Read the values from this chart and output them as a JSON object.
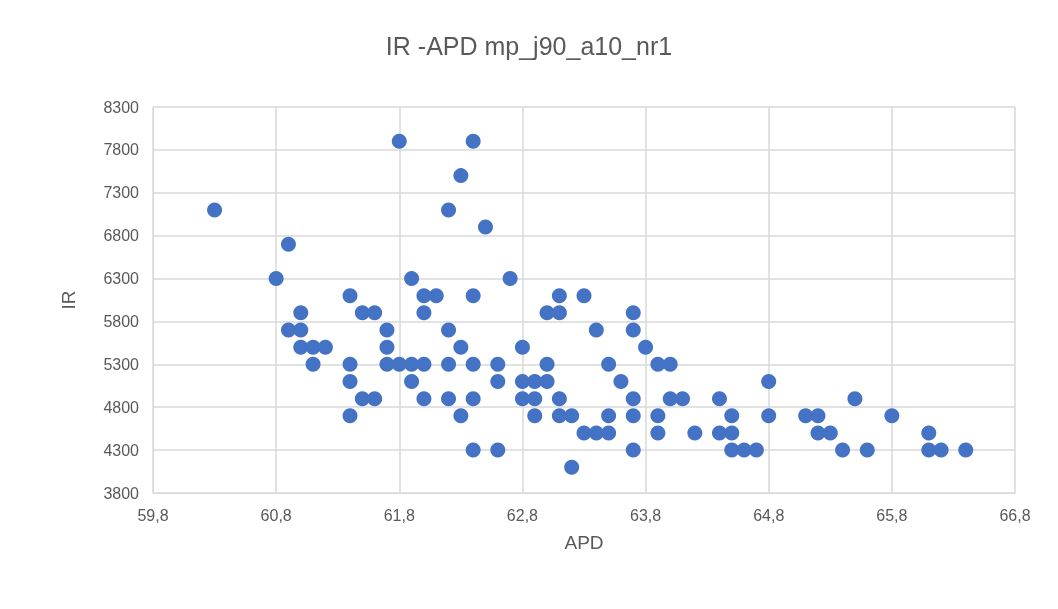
{
  "chart_data": {
    "type": "scatter",
    "title": "IR -APD mp_j90_a10_nr1",
    "xlabel": "APD",
    "ylabel": "IR",
    "xlim": [
      59.8,
      66.8
    ],
    "xticks": [
      {
        "value": 59.8,
        "label": "59,8"
      },
      {
        "value": 60.8,
        "label": "60,8"
      },
      {
        "value": 61.8,
        "label": "61,8"
      },
      {
        "value": 62.8,
        "label": "62,8"
      },
      {
        "value": 63.8,
        "label": "63,8"
      },
      {
        "value": 64.8,
        "label": "64,8"
      },
      {
        "value": 65.8,
        "label": "65,8"
      },
      {
        "value": 66.8,
        "label": "66,8"
      }
    ],
    "ylim": [
      3800,
      8300
    ],
    "yticks": [
      3800,
      4300,
      4800,
      5300,
      5800,
      6300,
      6800,
      7300,
      7800,
      8300
    ],
    "grid": true,
    "marker": "circle",
    "series": [
      {
        "color": "#4472c4",
        "x": [
          60.3,
          61.8,
          60.9,
          60.8,
          61.9,
          61.4,
          62.0,
          62.1,
          61.0,
          61.5,
          61.6,
          62.0,
          60.9,
          61.0,
          61.7,
          61.0,
          61.1,
          61.2,
          61.7,
          61.1,
          61.4,
          61.7,
          61.8,
          61.9,
          62.0,
          61.4,
          61.9,
          61.5,
          61.6,
          62.0,
          61.4,
          62.4,
          62.3,
          62.2,
          62.5,
          62.7,
          62.4,
          63.0,
          63.1,
          63.1,
          63.3,
          63.7,
          62.2,
          63.4,
          63.7,
          62.3,
          62.8,
          63.8,
          62.2,
          62.4,
          62.6,
          63.0,
          63.5,
          63.9,
          64.0,
          62.6,
          62.8,
          62.9,
          63.0,
          63.6,
          62.2,
          62.4,
          62.8,
          62.9,
          63.1,
          63.7,
          64.0,
          64.1,
          64.4,
          62.3,
          62.9,
          63.1,
          63.2,
          63.5,
          63.7,
          63.9,
          63.3,
          63.4,
          63.5,
          63.9,
          64.2,
          64.4,
          62.4,
          62.6,
          63.7,
          63.2,
          64.5,
          64.5,
          64.5,
          64.6,
          64.7,
          64.8,
          64.8,
          65.1,
          65.2,
          65.2,
          65.3,
          65.4,
          65.6,
          65.5,
          65.8,
          66.1,
          66.1,
          66.2,
          66.4
        ],
        "values": [
          7100,
          7900,
          6700,
          6300,
          6300,
          6100,
          6100,
          6100,
          5900,
          5900,
          5900,
          5900,
          5700,
          5700,
          5700,
          5500,
          5500,
          5500,
          5500,
          5300,
          5300,
          5300,
          5300,
          5300,
          5300,
          5100,
          5100,
          4900,
          4900,
          4900,
          4700,
          7900,
          7500,
          7100,
          6900,
          6300,
          6100,
          5900,
          5900,
          6100,
          6100,
          5900,
          5700,
          5700,
          5700,
          5500,
          5500,
          5500,
          5300,
          5300,
          5300,
          5300,
          5300,
          5300,
          5300,
          5100,
          5100,
          5100,
          5100,
          5100,
          4900,
          4900,
          4900,
          4900,
          4900,
          4900,
          4900,
          4900,
          4900,
          4700,
          4700,
          4700,
          4700,
          4700,
          4700,
          4700,
          4500,
          4500,
          4500,
          4500,
          4500,
          4500,
          4300,
          4300,
          4300,
          4100,
          4700,
          4500,
          4300,
          4300,
          4300,
          5100,
          4700,
          4700,
          4700,
          4500,
          4500,
          4300,
          4300,
          4900,
          4700,
          4500,
          4300,
          4300,
          4300
        ]
      }
    ]
  }
}
